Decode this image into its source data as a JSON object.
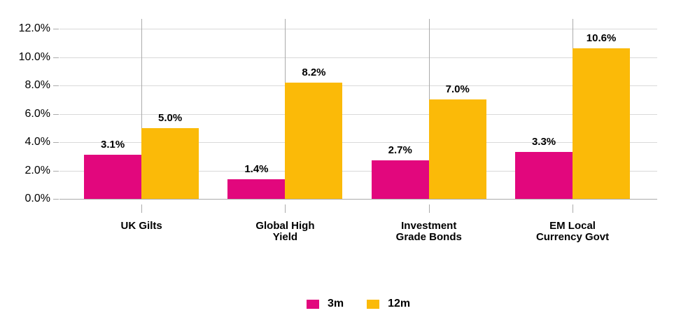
{
  "chart_data": {
    "type": "bar",
    "title": "",
    "xlabel": "",
    "ylabel": "",
    "categories": [
      "UK Gilts",
      "Global High Yield",
      "Investment Grade Bonds",
      "EM Local Currency Govt"
    ],
    "category_label_lines": [
      [
        "UK Gilts"
      ],
      [
        "Global High",
        "Yield"
      ],
      [
        "Investment",
        "Grade Bonds"
      ],
      [
        "EM Local",
        "Currency Govt"
      ]
    ],
    "series": [
      {
        "name": "3m",
        "color": "#E2077D",
        "values": [
          3.1,
          1.4,
          2.7,
          3.3
        ],
        "value_labels": [
          "3.1%",
          "1.4%",
          "2.7%",
          "3.3%"
        ]
      },
      {
        "name": "12m",
        "color": "#FBBA08",
        "values": [
          5.0,
          8.2,
          7.0,
          10.6
        ],
        "value_labels": [
          "5.0%",
          "8.2%",
          "7.0%",
          "10.6%"
        ]
      }
    ],
    "y_axis": {
      "tick_values": [
        12,
        10,
        8,
        6,
        4,
        2,
        0
      ],
      "tick_labels": [
        "12.0%",
        "10.0%",
        "8.0%",
        "6.0%",
        "4.0%",
        "2.0%",
        "0.0%"
      ],
      "min": 0,
      "max": 12.7,
      "step": 2
    },
    "grid": true,
    "legend_position": "bottom",
    "legend": [
      "3m",
      "12m"
    ]
  },
  "colors": {
    "series_3m": "#E2077D",
    "series_12m": "#FBBA08",
    "gridline_horizontal": "#D9D9D9",
    "gridline_vertical": "#ABABAB",
    "axis_line": "#ABABAB",
    "tick": "#ABABAB",
    "text": "#000000",
    "background": "#FFFFFF"
  }
}
